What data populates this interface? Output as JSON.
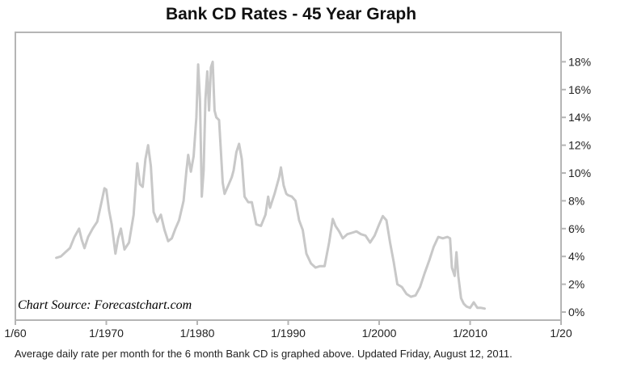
{
  "chart_data": {
    "type": "line",
    "title": "Bank CD Rates - 45 Year Graph",
    "source_note": "Chart Source: Forecastchart.com",
    "caption": "Average daily rate per month for the 6 month Bank CD is graphed above. Updated Friday, August 12, 2011.",
    "xlim": [
      1960,
      2020
    ],
    "ylim": [
      0,
      19.5
    ],
    "grid": false,
    "x_ticks": [
      {
        "value": 1960,
        "label": "1/60"
      },
      {
        "value": 1970,
        "label": "1/1970"
      },
      {
        "value": 1980,
        "label": "1/1980"
      },
      {
        "value": 1990,
        "label": "1/1990"
      },
      {
        "value": 2000,
        "label": "1/2000"
      },
      {
        "value": 2010,
        "label": "1/2010"
      },
      {
        "value": 2020,
        "label": "1/20"
      }
    ],
    "y_ticks": [
      {
        "value": 0,
        "label": "0%"
      },
      {
        "value": 2,
        "label": "2%"
      },
      {
        "value": 4,
        "label": "4%"
      },
      {
        "value": 6,
        "label": "6%"
      },
      {
        "value": 8,
        "label": "8%"
      },
      {
        "value": 10,
        "label": "10%"
      },
      {
        "value": 12,
        "label": "12%"
      },
      {
        "value": 14,
        "label": "14%"
      },
      {
        "value": 16,
        "label": "16%"
      },
      {
        "value": 18,
        "label": "18%"
      }
    ],
    "series": [
      {
        "color": "#c8c8c8",
        "points": [
          [
            1964.5,
            3.9
          ],
          [
            1965.0,
            4.0
          ],
          [
            1965.5,
            4.3
          ],
          [
            1966.0,
            4.6
          ],
          [
            1966.5,
            5.4
          ],
          [
            1967.0,
            6.0
          ],
          [
            1967.3,
            5.2
          ],
          [
            1967.6,
            4.6
          ],
          [
            1968.0,
            5.4
          ],
          [
            1968.5,
            6.0
          ],
          [
            1969.0,
            6.5
          ],
          [
            1969.5,
            8.0
          ],
          [
            1969.8,
            8.9
          ],
          [
            1970.0,
            8.8
          ],
          [
            1970.3,
            7.3
          ],
          [
            1970.6,
            6.3
          ],
          [
            1971.0,
            4.2
          ],
          [
            1971.3,
            5.3
          ],
          [
            1971.6,
            6.0
          ],
          [
            1972.0,
            4.5
          ],
          [
            1972.5,
            5.0
          ],
          [
            1973.0,
            7.0
          ],
          [
            1973.4,
            10.7
          ],
          [
            1973.7,
            9.2
          ],
          [
            1974.0,
            9.0
          ],
          [
            1974.3,
            11.0
          ],
          [
            1974.6,
            12.0
          ],
          [
            1974.9,
            10.5
          ],
          [
            1975.2,
            7.2
          ],
          [
            1975.6,
            6.5
          ],
          [
            1976.0,
            7.0
          ],
          [
            1976.4,
            5.9
          ],
          [
            1976.8,
            5.1
          ],
          [
            1977.2,
            5.3
          ],
          [
            1977.6,
            6.0
          ],
          [
            1978.0,
            6.6
          ],
          [
            1978.5,
            8.0
          ],
          [
            1978.8,
            10.1
          ],
          [
            1979.0,
            11.3
          ],
          [
            1979.3,
            10.1
          ],
          [
            1979.6,
            11.2
          ],
          [
            1979.9,
            14.0
          ],
          [
            1980.1,
            17.8
          ],
          [
            1980.3,
            15.2
          ],
          [
            1980.5,
            8.3
          ],
          [
            1980.7,
            10.2
          ],
          [
            1980.9,
            15.3
          ],
          [
            1981.1,
            17.3
          ],
          [
            1981.3,
            14.5
          ],
          [
            1981.5,
            17.6
          ],
          [
            1981.7,
            18.0
          ],
          [
            1981.9,
            14.5
          ],
          [
            1982.1,
            14.0
          ],
          [
            1982.4,
            13.8
          ],
          [
            1982.8,
            9.3
          ],
          [
            1983.0,
            8.5
          ],
          [
            1983.4,
            9.1
          ],
          [
            1983.8,
            9.7
          ],
          [
            1984.0,
            10.2
          ],
          [
            1984.3,
            11.5
          ],
          [
            1984.6,
            12.1
          ],
          [
            1984.9,
            11.0
          ],
          [
            1985.2,
            8.3
          ],
          [
            1985.6,
            7.9
          ],
          [
            1986.0,
            7.9
          ],
          [
            1986.5,
            6.3
          ],
          [
            1987.0,
            6.2
          ],
          [
            1987.5,
            7.0
          ],
          [
            1987.8,
            8.3
          ],
          [
            1988.0,
            7.5
          ],
          [
            1988.5,
            8.5
          ],
          [
            1989.0,
            9.7
          ],
          [
            1989.2,
            10.4
          ],
          [
            1989.5,
            9.1
          ],
          [
            1989.8,
            8.5
          ],
          [
            1990.0,
            8.4
          ],
          [
            1990.4,
            8.3
          ],
          [
            1990.8,
            8.0
          ],
          [
            1991.2,
            6.6
          ],
          [
            1991.6,
            5.9
          ],
          [
            1992.0,
            4.2
          ],
          [
            1992.5,
            3.5
          ],
          [
            1993.0,
            3.2
          ],
          [
            1993.5,
            3.3
          ],
          [
            1994.0,
            3.3
          ],
          [
            1994.5,
            5.0
          ],
          [
            1994.9,
            6.7
          ],
          [
            1995.2,
            6.2
          ],
          [
            1995.6,
            5.8
          ],
          [
            1996.0,
            5.3
          ],
          [
            1996.5,
            5.6
          ],
          [
            1997.0,
            5.7
          ],
          [
            1997.5,
            5.8
          ],
          [
            1998.0,
            5.6
          ],
          [
            1998.5,
            5.5
          ],
          [
            1999.0,
            5.0
          ],
          [
            1999.5,
            5.5
          ],
          [
            2000.0,
            6.3
          ],
          [
            2000.4,
            6.9
          ],
          [
            2000.8,
            6.6
          ],
          [
            2001.2,
            5.0
          ],
          [
            2001.6,
            3.6
          ],
          [
            2002.0,
            2.0
          ],
          [
            2002.5,
            1.8
          ],
          [
            2003.0,
            1.3
          ],
          [
            2003.5,
            1.1
          ],
          [
            2004.0,
            1.2
          ],
          [
            2004.5,
            1.8
          ],
          [
            2005.0,
            2.8
          ],
          [
            2005.5,
            3.7
          ],
          [
            2006.0,
            4.7
          ],
          [
            2006.5,
            5.4
          ],
          [
            2007.0,
            5.3
          ],
          [
            2007.5,
            5.4
          ],
          [
            2007.8,
            5.3
          ],
          [
            2008.0,
            3.2
          ],
          [
            2008.3,
            2.6
          ],
          [
            2008.5,
            4.3
          ],
          [
            2008.7,
            2.6
          ],
          [
            2009.0,
            1.0
          ],
          [
            2009.3,
            0.6
          ],
          [
            2009.6,
            0.4
          ],
          [
            2010.0,
            0.3
          ],
          [
            2010.4,
            0.7
          ],
          [
            2010.8,
            0.3
          ],
          [
            2011.2,
            0.3
          ],
          [
            2011.6,
            0.25
          ]
        ]
      }
    ]
  }
}
